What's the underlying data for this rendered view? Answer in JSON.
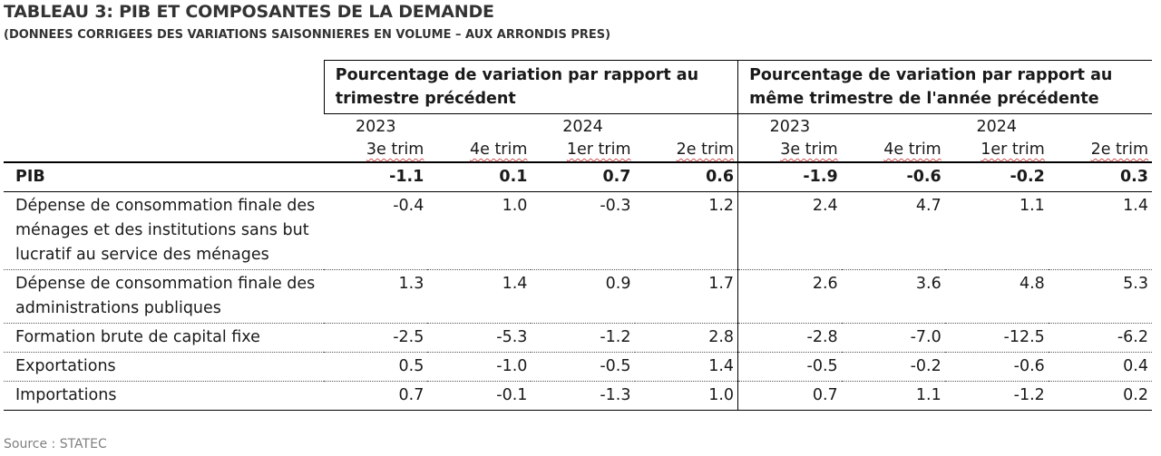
{
  "title": "TABLEAU 3: PIB ET COMPOSANTES DE LA DEMANDE",
  "subtitle": "(DONNEES CORRIGEES DES VARIATIONS SAISONNIERES EN VOLUME – AUX ARRONDIS PRES)",
  "groups": [
    "Pourcentage de variation par rapport au trimestre précédent",
    "Pourcentage de variation par rapport au même trimestre de l'année précédente"
  ],
  "years": [
    "2023",
    "2024",
    "2023",
    "2024"
  ],
  "quarters": [
    "3e trim",
    "4e trim",
    "1er trim",
    "2e trim",
    "3e trim",
    "4e trim",
    "1er trim",
    "2e trim"
  ],
  "rows": [
    {
      "label": "PIB",
      "values": [
        "-1.1",
        "0.1",
        "0.7",
        "0.6",
        "-1.9",
        "-0.6",
        "-0.2",
        "0.3"
      ]
    },
    {
      "label": "Dépense de consommation finale des ménages et des institutions sans but lucratif au service des ménages",
      "values": [
        "-0.4",
        "1.0",
        "-0.3",
        "1.2",
        "2.4",
        "4.7",
        "1.1",
        "1.4"
      ]
    },
    {
      "label": "Dépense de consommation finale des administrations publiques",
      "values": [
        "1.3",
        "1.4",
        "0.9",
        "1.7",
        "2.6",
        "3.6",
        "4.8",
        "5.3"
      ]
    },
    {
      "label": "Formation brute de capital fixe",
      "values": [
        "-2.5",
        "-5.3",
        "-1.2",
        "2.8",
        "-2.8",
        "-7.0",
        "-12.5",
        "-6.2"
      ]
    },
    {
      "label": "Exportations",
      "values": [
        "0.5",
        "-1.0",
        "-0.5",
        "1.4",
        "-0.5",
        "-0.2",
        "-0.6",
        "0.4"
      ]
    },
    {
      "label": "Importations",
      "values": [
        "0.7",
        "-0.1",
        "-1.3",
        "1.0",
        "0.7",
        "1.1",
        "-1.2",
        "0.2"
      ]
    }
  ],
  "source": "Source : STATEC"
}
